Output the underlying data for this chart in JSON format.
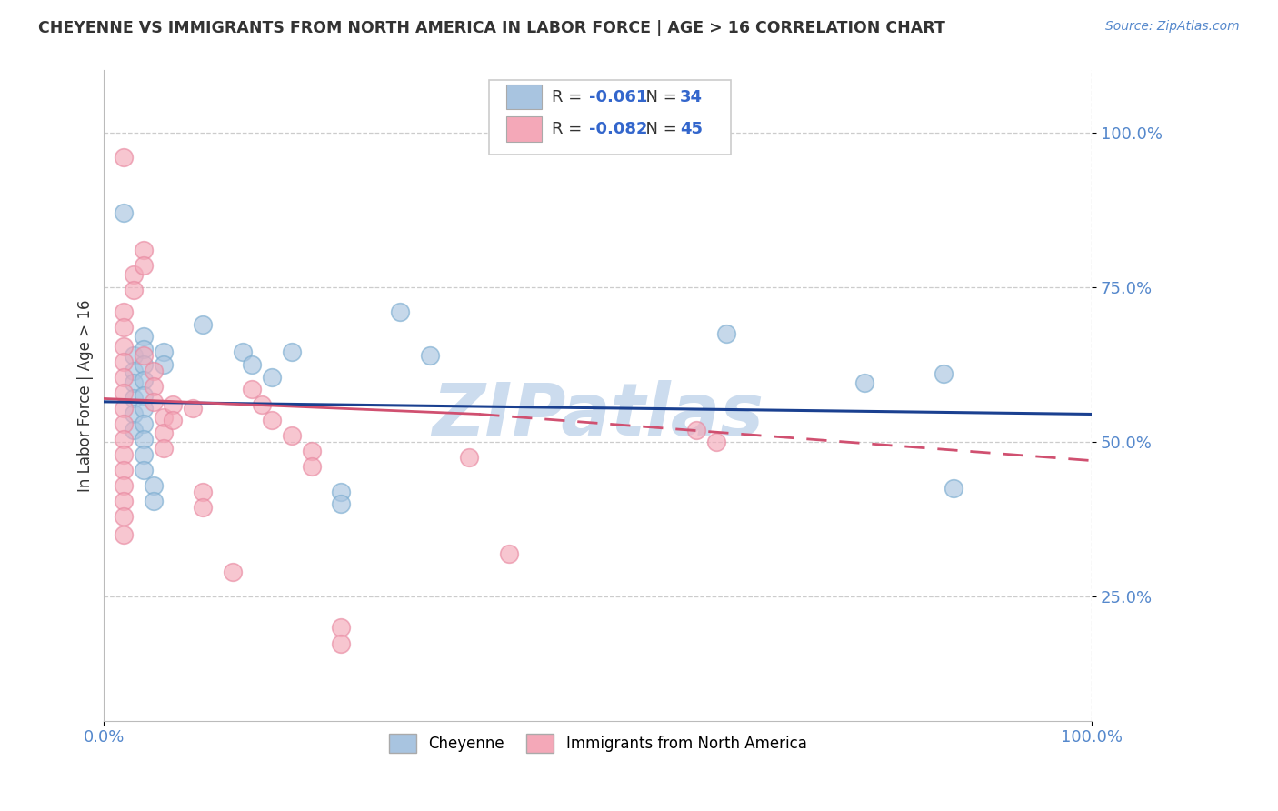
{
  "title": "CHEYENNE VS IMMIGRANTS FROM NORTH AMERICA IN LABOR FORCE | AGE > 16 CORRELATION CHART",
  "source": "Source: ZipAtlas.com",
  "ylabel": "In Labor Force | Age > 16",
  "xlim": [
    0.0,
    1.0
  ],
  "ylim": [
    0.05,
    1.1
  ],
  "y_ticks": [
    0.25,
    0.5,
    0.75,
    1.0
  ],
  "x_ticks": [
    0.0,
    1.0
  ],
  "legend_labels": [
    "Cheyenne",
    "Immigrants from North America"
  ],
  "blue_R": "-0.061",
  "blue_N": "34",
  "pink_R": "-0.082",
  "pink_N": "45",
  "blue_color": "#a8c4e0",
  "pink_color": "#f4a8b8",
  "blue_edge_color": "#7aacd0",
  "pink_edge_color": "#e888a0",
  "blue_line_color": "#1a4090",
  "pink_line_color": "#d05070",
  "background_color": "#ffffff",
  "grid_color": "#cccccc",
  "title_color": "#333333",
  "tick_color": "#5588cc",
  "watermark_color": "#ccdcee",
  "blue_points": [
    [
      0.02,
      0.87
    ],
    [
      0.03,
      0.64
    ],
    [
      0.03,
      0.615
    ],
    [
      0.03,
      0.595
    ],
    [
      0.03,
      0.57
    ],
    [
      0.03,
      0.545
    ],
    [
      0.03,
      0.52
    ],
    [
      0.04,
      0.67
    ],
    [
      0.04,
      0.65
    ],
    [
      0.04,
      0.625
    ],
    [
      0.04,
      0.6
    ],
    [
      0.04,
      0.575
    ],
    [
      0.04,
      0.555
    ],
    [
      0.04,
      0.53
    ],
    [
      0.04,
      0.505
    ],
    [
      0.04,
      0.48
    ],
    [
      0.04,
      0.455
    ],
    [
      0.05,
      0.43
    ],
    [
      0.05,
      0.405
    ],
    [
      0.06,
      0.645
    ],
    [
      0.06,
      0.625
    ],
    [
      0.1,
      0.69
    ],
    [
      0.14,
      0.645
    ],
    [
      0.15,
      0.625
    ],
    [
      0.17,
      0.605
    ],
    [
      0.19,
      0.645
    ],
    [
      0.24,
      0.42
    ],
    [
      0.24,
      0.4
    ],
    [
      0.3,
      0.71
    ],
    [
      0.33,
      0.64
    ],
    [
      0.63,
      0.675
    ],
    [
      0.77,
      0.595
    ],
    [
      0.85,
      0.61
    ],
    [
      0.86,
      0.425
    ]
  ],
  "pink_points": [
    [
      0.02,
      0.96
    ],
    [
      0.02,
      0.71
    ],
    [
      0.02,
      0.685
    ],
    [
      0.02,
      0.655
    ],
    [
      0.02,
      0.63
    ],
    [
      0.02,
      0.605
    ],
    [
      0.02,
      0.58
    ],
    [
      0.02,
      0.555
    ],
    [
      0.02,
      0.53
    ],
    [
      0.02,
      0.505
    ],
    [
      0.02,
      0.48
    ],
    [
      0.02,
      0.455
    ],
    [
      0.02,
      0.43
    ],
    [
      0.02,
      0.405
    ],
    [
      0.02,
      0.38
    ],
    [
      0.02,
      0.35
    ],
    [
      0.03,
      0.77
    ],
    [
      0.03,
      0.745
    ],
    [
      0.04,
      0.81
    ],
    [
      0.04,
      0.785
    ],
    [
      0.04,
      0.64
    ],
    [
      0.05,
      0.615
    ],
    [
      0.05,
      0.59
    ],
    [
      0.05,
      0.565
    ],
    [
      0.06,
      0.54
    ],
    [
      0.06,
      0.515
    ],
    [
      0.06,
      0.49
    ],
    [
      0.07,
      0.56
    ],
    [
      0.07,
      0.535
    ],
    [
      0.09,
      0.555
    ],
    [
      0.1,
      0.42
    ],
    [
      0.1,
      0.395
    ],
    [
      0.13,
      0.29
    ],
    [
      0.15,
      0.585
    ],
    [
      0.16,
      0.56
    ],
    [
      0.17,
      0.535
    ],
    [
      0.19,
      0.51
    ],
    [
      0.21,
      0.485
    ],
    [
      0.21,
      0.46
    ],
    [
      0.24,
      0.2
    ],
    [
      0.24,
      0.175
    ],
    [
      0.37,
      0.475
    ],
    [
      0.41,
      0.32
    ],
    [
      0.6,
      0.52
    ],
    [
      0.62,
      0.5
    ]
  ]
}
